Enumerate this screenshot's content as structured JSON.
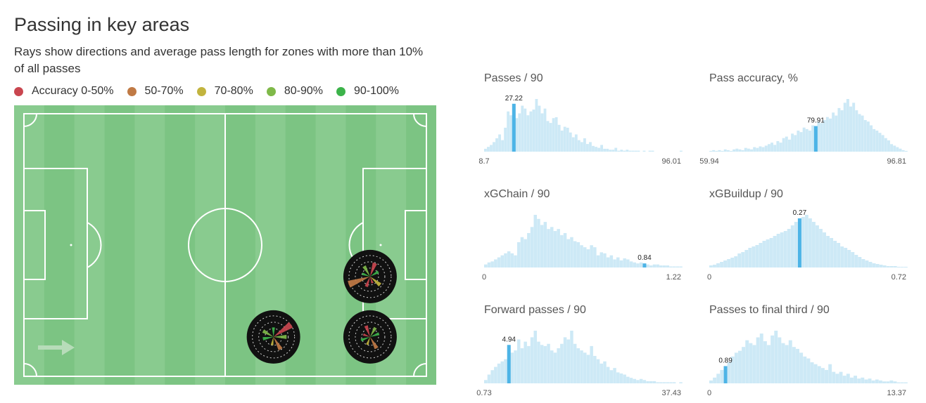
{
  "title": "Passing in key areas",
  "subtitle": "Rays show directions and average pass length for zones with more than 10% of all passes",
  "legend": [
    {
      "label": "Accuracy 0-50%",
      "color": "#c9464f"
    },
    {
      "label": "50-70%",
      "color": "#c07a45"
    },
    {
      "label": "70-80%",
      "color": "#c2b43e"
    },
    {
      "label": "80-90%",
      "color": "#7fb949"
    },
    {
      "label": "90-100%",
      "color": "#3cb34a"
    }
  ],
  "colors": {
    "pitch": "#7cc483",
    "pitch_stripe": "#89cb8f",
    "bar": "#cde9f6",
    "highlight": "#4db4e6",
    "zone_disc": "#111111"
  },
  "chart_data": [
    {
      "type": "pitch_pass_map",
      "attack_direction": "right",
      "zones": [
        {
          "x": 86,
          "y": 62,
          "rays": [
            {
              "angle": 200,
              "length": 0.95,
              "accuracy": "50-70%"
            },
            {
              "angle": 70,
              "length": 0.6,
              "accuracy": "0-50%"
            },
            {
              "angle": 30,
              "length": 0.4,
              "accuracy": "90-100%"
            },
            {
              "angle": 120,
              "length": 0.5,
              "accuracy": "80-90%"
            },
            {
              "angle": 250,
              "length": 0.45,
              "accuracy": "0-50%"
            },
            {
              "angle": 320,
              "length": 0.55,
              "accuracy": "70-80%"
            },
            {
              "angle": 160,
              "length": 0.35,
              "accuracy": "90-100%"
            },
            {
              "angle": 290,
              "length": 0.3,
              "accuracy": "0-50%"
            }
          ]
        },
        {
          "x": 62,
          "y": 85,
          "rays": [
            {
              "angle": 35,
              "length": 0.9,
              "accuracy": "0-50%"
            },
            {
              "angle": 300,
              "length": 0.6,
              "accuracy": "50-70%"
            },
            {
              "angle": 190,
              "length": 0.45,
              "accuracy": "90-100%"
            },
            {
              "angle": 150,
              "length": 0.5,
              "accuracy": "80-90%"
            },
            {
              "angle": 260,
              "length": 0.35,
              "accuracy": "70-80%"
            },
            {
              "angle": 90,
              "length": 0.4,
              "accuracy": "90-100%"
            },
            {
              "angle": 0,
              "length": 0.55,
              "accuracy": "80-90%"
            }
          ]
        },
        {
          "x": 86,
          "y": 85,
          "rays": [
            {
              "angle": 110,
              "length": 0.5,
              "accuracy": "0-50%"
            },
            {
              "angle": 300,
              "length": 0.55,
              "accuracy": "50-70%"
            },
            {
              "angle": 60,
              "length": 0.45,
              "accuracy": "80-90%"
            },
            {
              "angle": 200,
              "length": 0.4,
              "accuracy": "90-100%"
            },
            {
              "angle": 250,
              "length": 0.35,
              "accuracy": "70-80%"
            },
            {
              "angle": 20,
              "length": 0.4,
              "accuracy": "90-100%"
            },
            {
              "angle": 160,
              "length": 0.3,
              "accuracy": "0-50%"
            }
          ]
        }
      ]
    },
    {
      "type": "bar",
      "title": "Passes / 90",
      "min_label": "8.7",
      "max_label": "96.01",
      "highlight_index": 10,
      "highlight_label": "27.22",
      "values": [
        3,
        5,
        7,
        10,
        14,
        18,
        12,
        25,
        42,
        38,
        50,
        35,
        40,
        48,
        45,
        38,
        42,
        44,
        55,
        48,
        40,
        45,
        32,
        30,
        35,
        36,
        28,
        22,
        26,
        25,
        20,
        15,
        18,
        12,
        10,
        14,
        8,
        10,
        6,
        5,
        4,
        7,
        3,
        3,
        2,
        2,
        4,
        1,
        2,
        1,
        2,
        1,
        1,
        1,
        1,
        0,
        1,
        0,
        1,
        1,
        0,
        0,
        0,
        0,
        0,
        0,
        0,
        0,
        0,
        1
      ]
    },
    {
      "type": "bar",
      "title": "Pass accuracy, %",
      "min_label": "59.94",
      "max_label": "96.81",
      "highlight_index": 36,
      "highlight_label": "79.91",
      "values": [
        1,
        2,
        1,
        2,
        1,
        3,
        2,
        1,
        3,
        4,
        3,
        2,
        5,
        4,
        3,
        6,
        5,
        7,
        6,
        8,
        10,
        12,
        9,
        14,
        12,
        18,
        20,
        16,
        24,
        22,
        28,
        26,
        32,
        30,
        28,
        35,
        34,
        40,
        38,
        42,
        46,
        44,
        52,
        48,
        58,
        55,
        65,
        70,
        60,
        65,
        55,
        50,
        48,
        42,
        40,
        35,
        30,
        28,
        25,
        22,
        18,
        15,
        10,
        8,
        6,
        4,
        2,
        1
      ]
    },
    {
      "type": "bar",
      "title": "xGChain / 90",
      "min_label": "0",
      "max_label": "1.22",
      "highlight_index": 48,
      "highlight_label": "0.84",
      "values": [
        3,
        5,
        6,
        8,
        10,
        12,
        14,
        16,
        14,
        12,
        25,
        30,
        28,
        34,
        40,
        52,
        48,
        42,
        45,
        38,
        40,
        36,
        38,
        32,
        34,
        28,
        30,
        26,
        25,
        22,
        20,
        18,
        22,
        20,
        12,
        15,
        14,
        10,
        12,
        8,
        10,
        7,
        9,
        8,
        6,
        5,
        4,
        5,
        4,
        3,
        2,
        3,
        3,
        2,
        2,
        2,
        1,
        1,
        1,
        1
      ]
    },
    {
      "type": "bar",
      "title": "xGBuildup / 90",
      "min_label": "0",
      "max_label": "0.72",
      "highlight_index": 25,
      "highlight_label": "0.27",
      "values": [
        3,
        4,
        6,
        8,
        10,
        12,
        14,
        16,
        20,
        22,
        25,
        28,
        30,
        32,
        35,
        38,
        40,
        42,
        45,
        48,
        50,
        52,
        55,
        60,
        65,
        70,
        72,
        75,
        70,
        65,
        60,
        55,
        50,
        45,
        42,
        38,
        35,
        30,
        28,
        25,
        22,
        18,
        15,
        12,
        10,
        8,
        6,
        5,
        4,
        3,
        2,
        2,
        2,
        1,
        1,
        1
      ]
    },
    {
      "type": "bar",
      "title": "Forward passes / 90",
      "min_label": "0.73",
      "max_label": "37.43",
      "highlight_index": 7,
      "highlight_label": "4.94",
      "values": [
        3,
        8,
        12,
        15,
        18,
        20,
        22,
        35,
        28,
        30,
        40,
        32,
        38,
        34,
        42,
        48,
        38,
        35,
        34,
        36,
        30,
        28,
        32,
        36,
        42,
        40,
        48,
        36,
        32,
        30,
        28,
        26,
        34,
        25,
        22,
        18,
        20,
        15,
        12,
        14,
        10,
        9,
        8,
        6,
        5,
        4,
        3,
        4,
        3,
        2,
        2,
        2,
        1,
        1,
        1,
        1,
        1,
        1,
        0,
        1
      ]
    },
    {
      "type": "bar",
      "title": "Passes to final third / 90",
      "min_label": "0",
      "max_label": "13.37",
      "highlight_index": 4,
      "highlight_label": "0.89",
      "values": [
        3,
        6,
        10,
        14,
        18,
        22,
        28,
        32,
        34,
        38,
        45,
        42,
        40,
        48,
        52,
        44,
        40,
        50,
        55,
        48,
        42,
        40,
        45,
        38,
        36,
        32,
        28,
        26,
        22,
        20,
        18,
        16,
        14,
        20,
        12,
        10,
        12,
        8,
        10,
        6,
        8,
        5,
        6,
        4,
        5,
        3,
        4,
        3,
        2,
        2,
        3,
        2,
        1,
        1,
        1
      ]
    }
  ]
}
